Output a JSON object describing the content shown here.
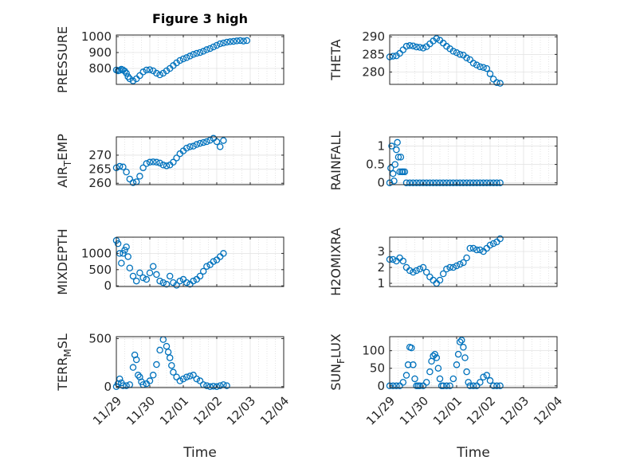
{
  "figure": {
    "title": "Figure 3 high",
    "x_ticks": [
      "11/29",
      "11/30",
      "12/01",
      "12/02",
      "12/03",
      "12/04"
    ],
    "xlabel": "Time",
    "marker_color": "#0072BD"
  },
  "chart_data": [
    {
      "type": "scatter",
      "ylabel": "PRESSURE",
      "ylim": [
        700,
        1010
      ],
      "yticks": [
        "800",
        "900",
        "1000"
      ],
      "ytick_values": [
        800,
        900,
        1000
      ],
      "x": [
        0,
        0.05,
        0.1,
        0.15,
        0.2,
        0.25,
        0.3,
        0.35,
        0.4,
        0.5,
        0.6,
        0.7,
        0.8,
        0.9,
        1.0,
        1.1,
        1.2,
        1.3,
        1.4,
        1.5,
        1.6,
        1.7,
        1.8,
        1.9,
        2.0,
        2.1,
        2.2,
        2.3,
        2.4,
        2.5,
        2.6,
        2.7,
        2.8,
        2.9,
        3.0,
        3.1,
        3.2,
        3.3,
        3.4,
        3.5,
        3.6,
        3.7,
        3.8,
        3.9
      ],
      "values": [
        790,
        785,
        788,
        795,
        790,
        783,
        770,
        748,
        735,
        722,
        735,
        755,
        778,
        790,
        792,
        785,
        770,
        760,
        770,
        785,
        800,
        818,
        835,
        850,
        860,
        868,
        878,
        888,
        895,
        900,
        908,
        918,
        925,
        935,
        945,
        955,
        960,
        965,
        968,
        970,
        973,
        975,
        972,
        975
      ]
    },
    {
      "type": "scatter",
      "ylabel": "THETA",
      "ylim": [
        276.5,
        290.5
      ],
      "yticks": [
        "280",
        "285",
        "290"
      ],
      "ytick_values": [
        280,
        285,
        290
      ],
      "x": [
        0,
        0.1,
        0.2,
        0.3,
        0.4,
        0.5,
        0.6,
        0.7,
        0.8,
        0.9,
        1.0,
        1.1,
        1.2,
        1.3,
        1.4,
        1.5,
        1.6,
        1.7,
        1.8,
        1.9,
        2.0,
        2.1,
        2.2,
        2.3,
        2.4,
        2.5,
        2.6,
        2.7,
        2.8,
        2.9,
        3.0,
        3.1,
        3.2,
        3.3
      ],
      "values": [
        284.3,
        284.5,
        284.6,
        285.3,
        286.3,
        287.3,
        287.5,
        287.4,
        287.1,
        287.0,
        286.8,
        287.2,
        288.0,
        288.8,
        289.5,
        289.0,
        288.2,
        287.3,
        286.6,
        285.9,
        285.5,
        285.0,
        284.8,
        284.0,
        283.5,
        282.5,
        282.0,
        281.5,
        281.3,
        281.0,
        279.5,
        278.0,
        277.0,
        276.8
      ]
    },
    {
      "type": "scatter",
      "ylabel": "AIR_TEMP",
      "ylim": [
        259.5,
        276.5
      ],
      "yticks": [
        "260",
        "265",
        "270"
      ],
      "ytick_values": [
        260,
        265,
        270
      ],
      "x": [
        0,
        0.1,
        0.2,
        0.3,
        0.4,
        0.5,
        0.6,
        0.7,
        0.8,
        0.9,
        1.0,
        1.1,
        1.2,
        1.3,
        1.4,
        1.5,
        1.6,
        1.7,
        1.8,
        1.9,
        2.0,
        2.1,
        2.2,
        2.3,
        2.4,
        2.5,
        2.6,
        2.7,
        2.8,
        2.9,
        3.0,
        3.1,
        3.2
      ],
      "values": [
        265.5,
        266.0,
        265.8,
        264.0,
        261.5,
        260.2,
        260.5,
        262.5,
        265.5,
        267.0,
        267.5,
        267.6,
        267.5,
        267.2,
        266.5,
        266.2,
        266.5,
        267.5,
        269.0,
        270.5,
        271.5,
        272.5,
        273.0,
        273.2,
        273.8,
        274.2,
        274.5,
        274.8,
        275.3,
        276.0,
        274.8,
        273.0,
        275.2
      ]
    },
    {
      "type": "scatter",
      "ylabel": "RAINFALL",
      "ylim": [
        -0.05,
        1.25
      ],
      "yticks": [
        "0",
        "0.5",
        "1"
      ],
      "ytick_values": [
        0,
        0.5,
        1
      ],
      "x": [
        0,
        0.03,
        0.06,
        0.1,
        0.13,
        0.16,
        0.2,
        0.23,
        0.26,
        0.3,
        0.33,
        0.36,
        0.4,
        0.45,
        0.5,
        0.6,
        0.7,
        0.8,
        0.9,
        1.0,
        1.1,
        1.2,
        1.3,
        1.4,
        1.5,
        1.6,
        1.7,
        1.8,
        1.9,
        2.0,
        2.1,
        2.2,
        2.3,
        2.4,
        2.5,
        2.6,
        2.7,
        2.8,
        2.9,
        3.0,
        3.1,
        3.2,
        3.3
      ],
      "values": [
        0,
        0.4,
        1.0,
        0.25,
        0.05,
        0.5,
        0.9,
        1.1,
        0.7,
        0.3,
        0.7,
        0.3,
        0.3,
        0.3,
        0,
        0,
        0,
        0,
        0,
        0,
        0,
        0,
        0,
        0,
        0,
        0,
        0,
        0,
        0,
        0,
        0,
        0,
        0,
        0,
        0,
        0,
        0,
        0,
        0,
        0,
        0,
        0,
        0
      ]
    },
    {
      "type": "scatter",
      "ylabel": "MIXDEPTH",
      "ylim": [
        -20,
        1500
      ],
      "yticks": [
        "0",
        "500",
        "1000"
      ],
      "ytick_values": [
        0,
        500,
        1000
      ],
      "x": [
        0,
        0.05,
        0.1,
        0.15,
        0.2,
        0.25,
        0.3,
        0.35,
        0.4,
        0.5,
        0.6,
        0.7,
        0.8,
        0.9,
        1.0,
        1.1,
        1.2,
        1.3,
        1.4,
        1.5,
        1.6,
        1.7,
        1.8,
        1.9,
        2.0,
        2.1,
        2.2,
        2.3,
        2.4,
        2.5,
        2.6,
        2.7,
        2.8,
        2.9,
        3.0,
        3.1,
        3.2
      ],
      "values": [
        1400,
        1300,
        1000,
        700,
        1000,
        1100,
        1200,
        900,
        550,
        300,
        150,
        400,
        250,
        200,
        400,
        600,
        350,
        150,
        100,
        50,
        300,
        100,
        20,
        150,
        200,
        100,
        50,
        150,
        200,
        300,
        450,
        600,
        650,
        750,
        800,
        900,
        1000
      ]
    },
    {
      "type": "scatter",
      "ylabel": "H2OMIXRA",
      "ylim": [
        0.8,
        3.9
      ],
      "yticks": [
        "1",
        "2",
        "3"
      ],
      "ytick_values": [
        1,
        2,
        3
      ],
      "x": [
        0,
        0.1,
        0.2,
        0.3,
        0.4,
        0.5,
        0.6,
        0.7,
        0.8,
        0.9,
        1.0,
        1.1,
        1.2,
        1.3,
        1.4,
        1.5,
        1.6,
        1.7,
        1.8,
        1.9,
        2.0,
        2.1,
        2.2,
        2.3,
        2.4,
        2.5,
        2.6,
        2.7,
        2.8,
        2.9,
        3.0,
        3.1,
        3.2,
        3.3
      ],
      "values": [
        2.5,
        2.5,
        2.4,
        2.6,
        2.4,
        2.0,
        1.8,
        1.7,
        1.8,
        1.9,
        2.0,
        1.7,
        1.4,
        1.2,
        1.0,
        1.2,
        1.6,
        1.9,
        2.0,
        2.0,
        2.1,
        2.2,
        2.3,
        2.6,
        3.2,
        3.2,
        3.1,
        3.1,
        3.0,
        3.2,
        3.4,
        3.5,
        3.6,
        3.8
      ]
    },
    {
      "type": "scatter",
      "ylabel": "TERR_MSL",
      "ylim": [
        -10,
        520
      ],
      "yticks": [
        "0",
        "500"
      ],
      "ytick_values": [
        0,
        500
      ],
      "x": [
        0,
        0.05,
        0.1,
        0.15,
        0.2,
        0.3,
        0.4,
        0.5,
        0.55,
        0.6,
        0.65,
        0.7,
        0.75,
        0.8,
        0.9,
        1.0,
        1.1,
        1.2,
        1.3,
        1.4,
        1.5,
        1.55,
        1.6,
        1.65,
        1.7,
        1.8,
        1.9,
        2.0,
        2.1,
        2.2,
        2.3,
        2.4,
        2.5,
        2.6,
        2.7,
        2.8,
        2.9,
        3.0,
        3.1,
        3.2,
        3.3
      ],
      "values": [
        0,
        30,
        80,
        40,
        10,
        10,
        20,
        200,
        330,
        280,
        120,
        100,
        50,
        20,
        30,
        60,
        120,
        230,
        380,
        490,
        420,
        360,
        300,
        220,
        150,
        100,
        60,
        80,
        100,
        110,
        120,
        80,
        60,
        20,
        10,
        0,
        5,
        0,
        10,
        20,
        10
      ]
    },
    {
      "type": "scatter",
      "ylabel": "SUN_FLUX",
      "ylim": [
        -5,
        140
      ],
      "yticks": [
        "0",
        "50",
        "100"
      ],
      "ytick_values": [
        0,
        50,
        100
      ],
      "x": [
        0,
        0.1,
        0.2,
        0.3,
        0.4,
        0.5,
        0.55,
        0.6,
        0.65,
        0.7,
        0.75,
        0.8,
        0.85,
        0.9,
        1.0,
        1.1,
        1.2,
        1.25,
        1.3,
        1.35,
        1.4,
        1.45,
        1.5,
        1.55,
        1.6,
        1.7,
        1.8,
        1.9,
        2.0,
        2.05,
        2.1,
        2.15,
        2.2,
        2.25,
        2.3,
        2.35,
        2.4,
        2.5,
        2.6,
        2.7,
        2.8,
        2.9,
        3.0,
        3.1,
        3.2,
        3.3
      ],
      "values": [
        0,
        0,
        0,
        0,
        10,
        30,
        60,
        110,
        108,
        60,
        20,
        0,
        0,
        0,
        0,
        10,
        40,
        70,
        85,
        90,
        80,
        50,
        20,
        0,
        0,
        0,
        0,
        20,
        60,
        90,
        125,
        130,
        110,
        80,
        40,
        10,
        0,
        0,
        0,
        10,
        25,
        30,
        15,
        0,
        0,
        0
      ]
    }
  ]
}
